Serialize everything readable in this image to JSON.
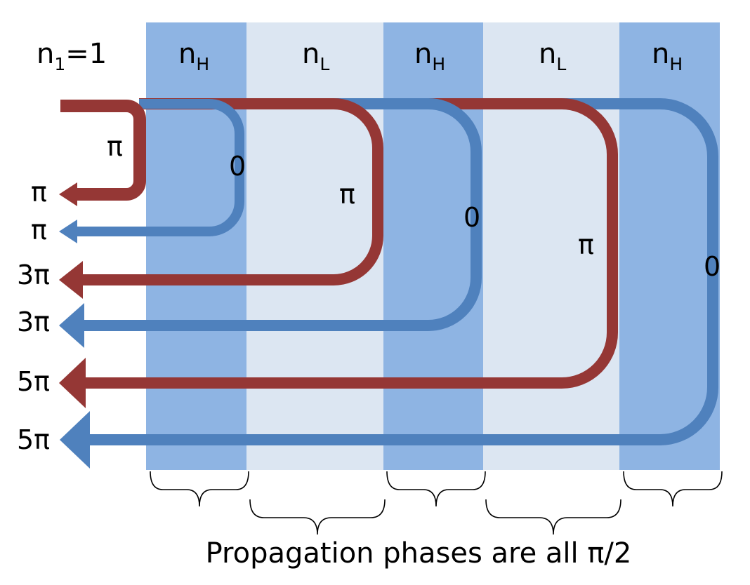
{
  "diagram": {
    "medium_label": {
      "base": "n",
      "sub": "1",
      "rest": "=1"
    },
    "layer_labels": [
      {
        "base": "n",
        "sub": "H"
      },
      {
        "base": "n",
        "sub": "L"
      },
      {
        "base": "n",
        "sub": "H"
      },
      {
        "base": "n",
        "sub": "L"
      },
      {
        "base": "n",
        "sub": "H"
      }
    ],
    "reflection_phases": [
      "π",
      "0",
      "π",
      "0",
      "π",
      "0"
    ],
    "output_phases": [
      "π",
      "π",
      "3π",
      "3π",
      "5π",
      "5π"
    ],
    "caption": "Propagation phases are all π/2",
    "colors": {
      "high_index_layer": "#8EB4E3",
      "low_index_layer": "#DCE6F2",
      "red_ray": "#953735",
      "blue_ray": "#4F81BD"
    }
  }
}
